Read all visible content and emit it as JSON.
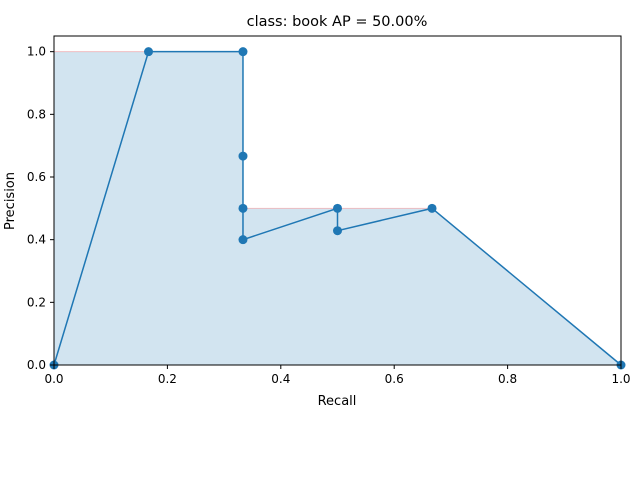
{
  "chart_data": {
    "type": "line",
    "title": "class: book AP = 50.00%",
    "xlabel": "Recall",
    "ylabel": "Precision",
    "xlim": [
      0,
      1
    ],
    "ylim": [
      0,
      1.05
    ],
    "x_ticks": [
      {
        "value": 0,
        "label": "0.0"
      },
      {
        "value": 0.2,
        "label": "0.2"
      },
      {
        "value": 0.4,
        "label": "0.4"
      },
      {
        "value": 0.6,
        "label": "0.6"
      },
      {
        "value": 0.8,
        "label": "0.8"
      },
      {
        "value": 1.0,
        "label": "1.0"
      }
    ],
    "y_ticks": [
      {
        "value": 0,
        "label": "0.0"
      },
      {
        "value": 0.2,
        "label": "0.2"
      },
      {
        "value": 0.4,
        "label": "0.4"
      },
      {
        "value": 0.6,
        "label": "0.6"
      },
      {
        "value": 0.8,
        "label": "0.8"
      },
      {
        "value": 1.0,
        "label": "1.0"
      }
    ],
    "grid": false,
    "precision_recall_curve": {
      "x": [
        0.0,
        0.1667,
        0.3333,
        0.3333,
        0.3333,
        0.3333,
        0.5,
        0.5,
        0.6667,
        1.0
      ],
      "y": [
        0.0,
        1.0,
        1.0,
        0.6667,
        0.5,
        0.4,
        0.5,
        0.4286,
        0.5,
        0.0
      ],
      "color": "#1f77b4",
      "marker": "circle"
    },
    "interpolated_precision": {
      "x": [
        0.0,
        0.1667,
        0.3333,
        0.3333,
        0.5,
        0.6667,
        1.0
      ],
      "y": [
        1.0,
        1.0,
        1.0,
        0.5,
        0.5,
        0.5,
        0.0
      ],
      "fill_color": "#1f77b4",
      "edge_color": "#ff0000"
    }
  }
}
